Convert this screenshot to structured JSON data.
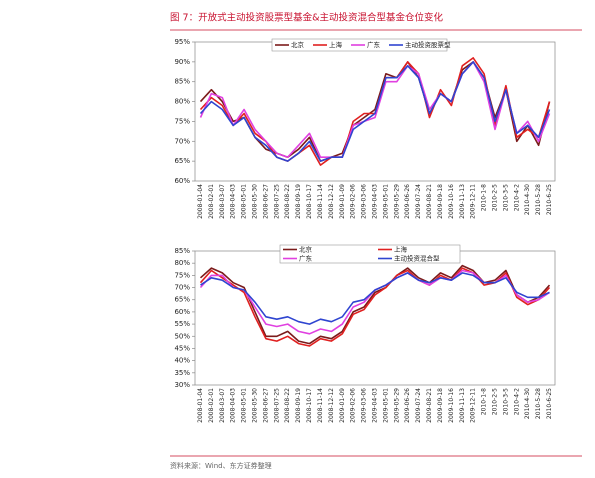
{
  "title": "图 7：开放式主动投资股票型基金&主动投资混合型基金仓位变化",
  "source": "资料来源：Wind、东方证券整理",
  "chart_data": [
    {
      "type": "line",
      "categories": [
        "2008-01-04",
        "2008-02-01",
        "2008-03-07",
        "2008-04-03",
        "2008-05-01",
        "2008-05-30",
        "2008-06-27",
        "2008-07-25",
        "2008-08-22",
        "2008-09-19",
        "2008-10-17",
        "2008-11-14",
        "2008-12-12",
        "2009-01-09",
        "2009-02-06",
        "2009-03-06",
        "2009-04-03",
        "2009-05-01",
        "2009-05-29",
        "2009-06-26",
        "2009-07-24",
        "2009-08-21",
        "2009-09-18",
        "2009-10-16",
        "2009-11-13",
        "2009-12-11",
        "2010-1-8",
        "2010-2-5",
        "2010-3-5",
        "2010-4-2",
        "2010-4-30",
        "2010-5-28",
        "2010-6-25"
      ],
      "series": [
        {
          "name": "北京",
          "color": "#7b1b1b",
          "values": [
            80,
            83,
            80,
            75,
            76,
            71,
            68,
            67,
            66,
            68,
            71,
            65,
            66,
            67,
            74,
            76,
            78,
            87,
            86,
            90,
            86,
            77,
            82,
            80,
            88,
            90,
            86,
            76,
            83,
            70,
            74,
            69,
            80
          ]
        },
        {
          "name": "上海",
          "color": "#e02020",
          "values": [
            78,
            81,
            79,
            74,
            77,
            72,
            70,
            66,
            65,
            67,
            69,
            64,
            66,
            66,
            75,
            77,
            77,
            86,
            86,
            90,
            87,
            76,
            83,
            79,
            89,
            91,
            87,
            74,
            84,
            71,
            73,
            71,
            80
          ]
        },
        {
          "name": "广东",
          "color": "#e040e0",
          "values": [
            76,
            82,
            81,
            74,
            78,
            73,
            70,
            67,
            66,
            69,
            72,
            66,
            66,
            66,
            74,
            75,
            76,
            85,
            85,
            89,
            87,
            78,
            82,
            80,
            87,
            90,
            85,
            73,
            83,
            72,
            75,
            70,
            77
          ]
        },
        {
          "name": "主动投资股票型",
          "color": "#2f45d0",
          "values": [
            77,
            80,
            78,
            74,
            76,
            71,
            69,
            66,
            65,
            67,
            70,
            65,
            66,
            66,
            73,
            75,
            77,
            86,
            86,
            89,
            86,
            77,
            82,
            80,
            87,
            90,
            86,
            75,
            83,
            72,
            74,
            71,
            78
          ]
        }
      ],
      "ylim": [
        60,
        95
      ],
      "yticks": [
        {
          "value": 60,
          "label": "60%"
        },
        {
          "value": 65,
          "label": "65%"
        },
        {
          "value": 70,
          "label": "70%"
        },
        {
          "value": 75,
          "label": "75%"
        },
        {
          "value": 80,
          "label": "80%"
        },
        {
          "value": 85,
          "label": "85%"
        },
        {
          "value": 90,
          "label": "90%"
        },
        {
          "value": 95,
          "label": "95%"
        }
      ],
      "legend": "top"
    },
    {
      "type": "line",
      "categories": [
        "2008-01-04",
        "2008-02-01",
        "2008-03-07",
        "2008-04-03",
        "2008-05-01",
        "2008-05-30",
        "2008-06-27",
        "2008-07-25",
        "2008-08-22",
        "2008-09-19",
        "2008-10-17",
        "2008-11-14",
        "2008-12-12",
        "2009-01-09",
        "2009-02-06",
        "2009-03-06",
        "2009-04-03",
        "2009-05-01",
        "2009-05-29",
        "2009-06-26",
        "2009-07-24",
        "2009-08-21",
        "2009-09-18",
        "2009-10-16",
        "2009-11-13",
        "2009-12-11",
        "2010-1-8",
        "2010-2-5",
        "2010-3-5",
        "2010-4-2",
        "2010-4-30",
        "2010-5-28",
        "2010-6-25"
      ],
      "series": [
        {
          "name": "北京",
          "color": "#7b1b1b",
          "values": [
            74,
            78,
            76,
            72,
            70,
            60,
            50,
            50,
            52,
            48,
            47,
            50,
            49,
            52,
            60,
            62,
            68,
            70,
            75,
            78,
            74,
            72,
            76,
            74,
            79,
            77,
            72,
            73,
            77,
            67,
            64,
            66,
            71
          ]
        },
        {
          "name": "上海",
          "color": "#e02020",
          "values": [
            72,
            77,
            74,
            71,
            68,
            58,
            49,
            48,
            50,
            47,
            46,
            49,
            48,
            51,
            59,
            61,
            67,
            70,
            75,
            77,
            73,
            71,
            75,
            73,
            78,
            76,
            71,
            72,
            76,
            66,
            63,
            65,
            70
          ]
        },
        {
          "name": "广东",
          "color": "#e040e0",
          "values": [
            70,
            75,
            75,
            70,
            69,
            62,
            55,
            54,
            55,
            52,
            51,
            53,
            52,
            55,
            62,
            64,
            69,
            71,
            74,
            76,
            73,
            71,
            74,
            73,
            77,
            76,
            72,
            72,
            75,
            67,
            64,
            65,
            68
          ]
        },
        {
          "name": "主动投资混合型",
          "color": "#2f45d0",
          "values": [
            71,
            74,
            73,
            70,
            69,
            64,
            58,
            57,
            58,
            56,
            55,
            57,
            56,
            58,
            64,
            65,
            69,
            71,
            74,
            76,
            73,
            72,
            74,
            73,
            76,
            75,
            72,
            72,
            74,
            68,
            66,
            66,
            68
          ]
        }
      ],
      "ylim": [
        30,
        85
      ],
      "yticks": [
        {
          "value": 30,
          "label": "30%"
        },
        {
          "value": 35,
          "label": "35%"
        },
        {
          "value": 40,
          "label": "40%"
        },
        {
          "value": 45,
          "label": "45%"
        },
        {
          "value": 50,
          "label": "50%"
        },
        {
          "value": 55,
          "label": "55%"
        },
        {
          "value": 60,
          "label": "60%"
        },
        {
          "value": 65,
          "label": "65%"
        },
        {
          "value": 70,
          "label": "70%"
        },
        {
          "value": 75,
          "label": "75%"
        },
        {
          "value": 80,
          "label": "80%"
        },
        {
          "value": 85,
          "label": "85%"
        }
      ],
      "legend": "top"
    }
  ]
}
